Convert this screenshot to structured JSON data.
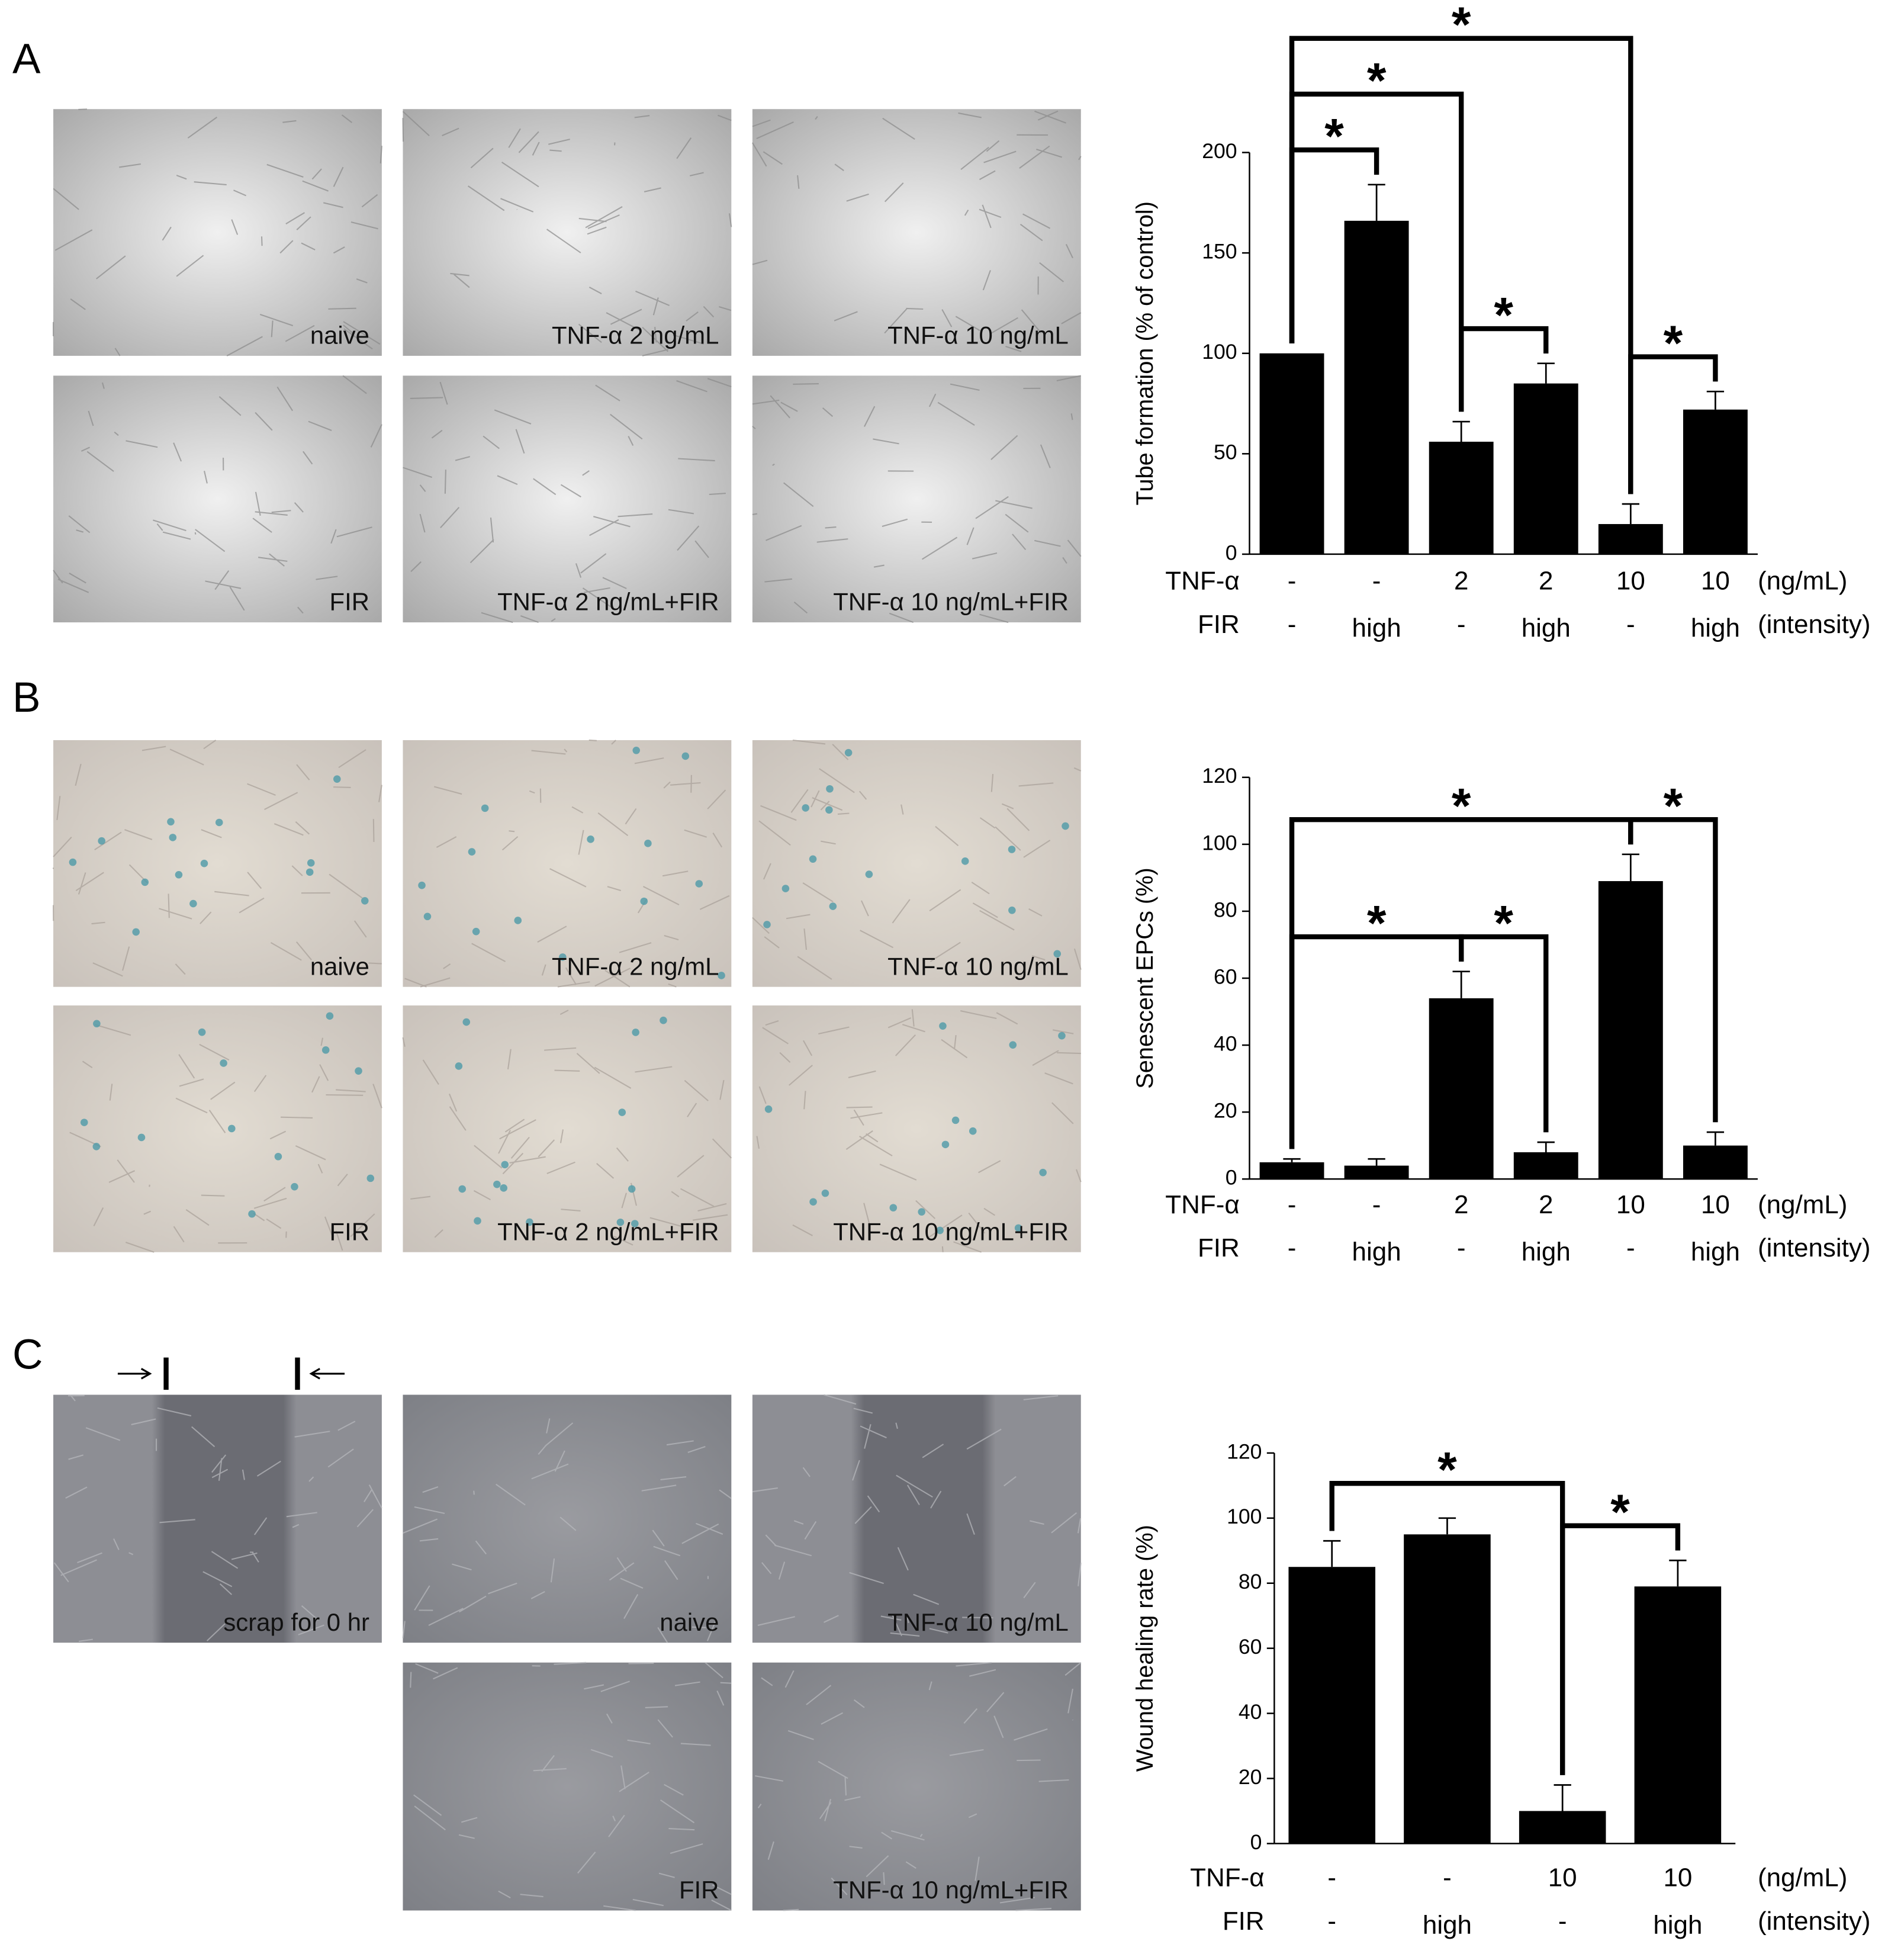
{
  "panels": [
    {
      "label": "A",
      "images": [
        "naive",
        "TNF-α 2 ng/mL",
        "TNF-α 10 ng/mL",
        "FIR",
        "TNF-α 2 ng/mL+FIR",
        "TNF-α 10 ng/mL+FIR"
      ]
    },
    {
      "label": "B",
      "images": [
        "naive",
        "TNF-α 2 ng/mL",
        "TNF-α 10 ng/mL",
        "FIR",
        "TNF-α 2 ng/mL+FIR",
        "TNF-α 10 ng/mL+FIR"
      ]
    },
    {
      "label": "C",
      "images": [
        "scrap for 0 hr",
        "naive",
        "TNF-α 10 ng/mL",
        "FIR",
        "TNF-α 10 ng/mL+FIR"
      ]
    }
  ],
  "chart_data": [
    {
      "type": "bar",
      "ylabel": "Tube formation (% of control)",
      "color": "#000000",
      "values": [
        100,
        166,
        56,
        85,
        15,
        72
      ],
      "errors": [
        null,
        18,
        10,
        10,
        10,
        9
      ],
      "ylim": [
        0,
        200
      ],
      "yticks": [
        0,
        50,
        100,
        150,
        200
      ],
      "category_rows": [
        {
          "name": "TNF-α",
          "labels": [
            "-",
            "-",
            "2",
            "2",
            "10",
            "10"
          ],
          "unit": "(ng/mL)"
        },
        {
          "name": "FIR",
          "labels": [
            "-",
            "high",
            "-",
            "high",
            "-",
            "high"
          ],
          "unit": "(intensity)"
        }
      ],
      "brackets": [
        {
          "from": 0,
          "to": 1,
          "label": "*"
        },
        {
          "from": 2,
          "to": 3,
          "label": "*"
        },
        {
          "from": 4,
          "to": 5,
          "label": "*"
        },
        {
          "from": 0,
          "to": 2,
          "label": "*"
        },
        {
          "from": 0,
          "to": 4,
          "label": "*"
        }
      ]
    },
    {
      "type": "bar",
      "ylabel": "Senescent EPCs (%)",
      "color": "#000000",
      "values": [
        5,
        4,
        54,
        8,
        89,
        10
      ],
      "errors": [
        1,
        2,
        8,
        3,
        8,
        4
      ],
      "ylim": [
        0,
        120
      ],
      "yticks": [
        0,
        20,
        40,
        60,
        80,
        100,
        120
      ],
      "category_rows": [
        {
          "name": "TNF-α",
          "labels": [
            "-",
            "-",
            "2",
            "2",
            "10",
            "10"
          ],
          "unit": "(ng/mL)"
        },
        {
          "name": "FIR",
          "labels": [
            "-",
            "high",
            "-",
            "high",
            "-",
            "high"
          ],
          "unit": "(intensity)"
        }
      ],
      "brackets": [
        {
          "from": 2,
          "to": 3,
          "label": "*"
        },
        {
          "from": 4,
          "to": 5,
          "label": "*"
        },
        {
          "from": 0,
          "to": 2,
          "label": "*"
        },
        {
          "from": 0,
          "to": 4,
          "label": "*"
        }
      ]
    },
    {
      "type": "bar",
      "ylabel": "Wound healing rate (%)",
      "color": "#000000",
      "values": [
        85,
        95,
        10,
        79
      ],
      "errors": [
        8,
        5,
        8,
        8
      ],
      "ylim": [
        0,
        120
      ],
      "yticks": [
        0,
        20,
        40,
        60,
        80,
        100,
        120
      ],
      "category_rows": [
        {
          "name": "TNF-α",
          "labels": [
            "-",
            "-",
            "10",
            "10"
          ],
          "unit": "(ng/mL)"
        },
        {
          "name": "FIR",
          "labels": [
            "-",
            "high",
            "-",
            "high"
          ],
          "unit": "(intensity)"
        }
      ],
      "brackets": [
        {
          "from": 2,
          "to": 3,
          "label": "*"
        },
        {
          "from": 0,
          "to": 2,
          "label": "*"
        }
      ]
    }
  ]
}
